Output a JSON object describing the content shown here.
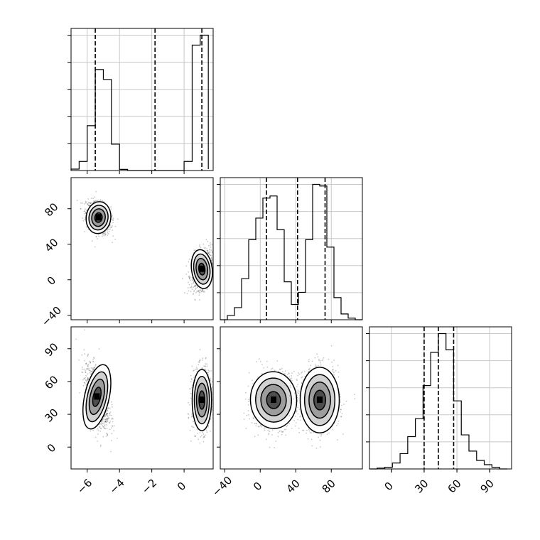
{
  "chart_data": [
    {
      "type": "histogram",
      "panel": "p1-marginal",
      "grid": true,
      "xlim": [
        -7.0,
        1.8
      ],
      "x_ticks": [
        -6,
        -4,
        -2,
        0
      ],
      "x_tick_labels": [
        "−6",
        "−4",
        "−2",
        "0"
      ],
      "bin_edges": [
        -7.0,
        -6.5,
        -6.0,
        -5.5,
        -5.0,
        -4.5,
        -4.0,
        -3.5,
        -3.0,
        -2.5,
        -2.0,
        -1.5,
        -1.0,
        -0.5,
        0.0,
        0.5,
        1.0,
        1.5
      ],
      "counts": [
        0.05,
        0.32,
        1.58,
        3.56,
        3.21,
        0.93,
        0.04,
        0,
        0,
        0,
        0,
        0,
        0,
        0,
        0.32,
        4.42,
        4.77,
        0.05
      ],
      "quantiles": [
        -5.5,
        -1.8,
        1.1
      ]
    },
    {
      "type": "histogram",
      "panel": "p2-marginal",
      "grid": true,
      "xlim": [
        -45,
        115
      ],
      "x_ticks": [
        -40,
        0,
        40,
        80
      ],
      "x_tick_labels": [
        "−40",
        "0",
        "40",
        "80"
      ],
      "bin_edges": [
        -45,
        -37,
        -29,
        -21,
        -13,
        -5,
        3,
        11,
        19,
        27,
        35,
        43,
        51,
        59,
        67,
        75,
        83,
        91,
        99,
        107,
        115
      ],
      "counts": [
        0,
        0.08,
        0.23,
        0.78,
        1.52,
        1.93,
        2.31,
        2.35,
        1.71,
        0.72,
        0.29,
        0.52,
        1.52,
        2.57,
        2.54,
        1.38,
        0.42,
        0.11,
        0.03,
        0
      ],
      "quantiles": [
        7,
        42,
        73
      ]
    },
    {
      "type": "histogram",
      "panel": "p3-marginal",
      "grid": true,
      "xlim": [
        -20,
        110
      ],
      "x_ticks": [
        0,
        30,
        60,
        90
      ],
      "x_tick_labels": [
        "0",
        "30",
        "60",
        "90"
      ],
      "bin_edges": [
        -20,
        -13,
        -6,
        1,
        8,
        15,
        22,
        29,
        36,
        43,
        50,
        57,
        64,
        71,
        78,
        85,
        92,
        99,
        106
      ],
      "counts": [
        0,
        0.1,
        0.2,
        0.7,
        1.8,
        3.8,
        5.9,
        9.8,
        13.7,
        15.9,
        14.0,
        8.0,
        4.0,
        2.1,
        1.0,
        0.5,
        0.2,
        0
      ],
      "quantiles": [
        30,
        43,
        57
      ]
    },
    {
      "type": "scatter",
      "panel": "p2-vs-p1",
      "xlim": [
        -7.0,
        1.8
      ],
      "ylim": [
        -45,
        115
      ],
      "x_ticks": [
        -6,
        -4,
        -2,
        0
      ],
      "y_ticks": [
        -40,
        0,
        40,
        80
      ],
      "y_tick_labels": [
        "−40",
        "0",
        "40",
        "80"
      ],
      "clusters": [
        {
          "x_mean": -5.3,
          "y_mean": 70,
          "x_sd": 0.38,
          "y_sd": 9,
          "rho": -0.3,
          "weight": 0.5
        },
        {
          "x_mean": 1.1,
          "y_mean": 12,
          "x_sd": 0.32,
          "y_sd": 11,
          "rho": 0.3,
          "weight": 0.5
        }
      ]
    },
    {
      "type": "scatter",
      "panel": "p3-vs-p1",
      "xlim": [
        -7.0,
        1.8
      ],
      "ylim": [
        -20,
        110
      ],
      "x_ticks": [
        -6,
        -4,
        -2,
        0
      ],
      "y_ticks": [
        0,
        30,
        60,
        90
      ],
      "clusters": [
        {
          "x_mean": -5.4,
          "y_mean": 46,
          "x_sd": 0.38,
          "y_sd": 15,
          "rho": -0.5,
          "weight": 0.5
        },
        {
          "x_mean": 1.1,
          "y_mean": 43,
          "x_sd": 0.3,
          "y_sd": 14,
          "rho": 0.0,
          "weight": 0.5
        }
      ]
    },
    {
      "type": "scatter",
      "panel": "p3-vs-p2",
      "xlim": [
        -45,
        115
      ],
      "ylim": [
        -20,
        110
      ],
      "x_ticks": [
        -40,
        0,
        40,
        80
      ],
      "y_ticks": [
        0,
        30,
        60,
        90
      ],
      "clusters": [
        {
          "x_mean": 15,
          "y_mean": 43,
          "x_sd": 13,
          "y_sd": 13,
          "rho": 0.1,
          "weight": 0.5
        },
        {
          "x_mean": 67,
          "y_mean": 43,
          "x_sd": 11,
          "y_sd": 15,
          "rho": 0.0,
          "weight": 0.5
        }
      ]
    }
  ]
}
